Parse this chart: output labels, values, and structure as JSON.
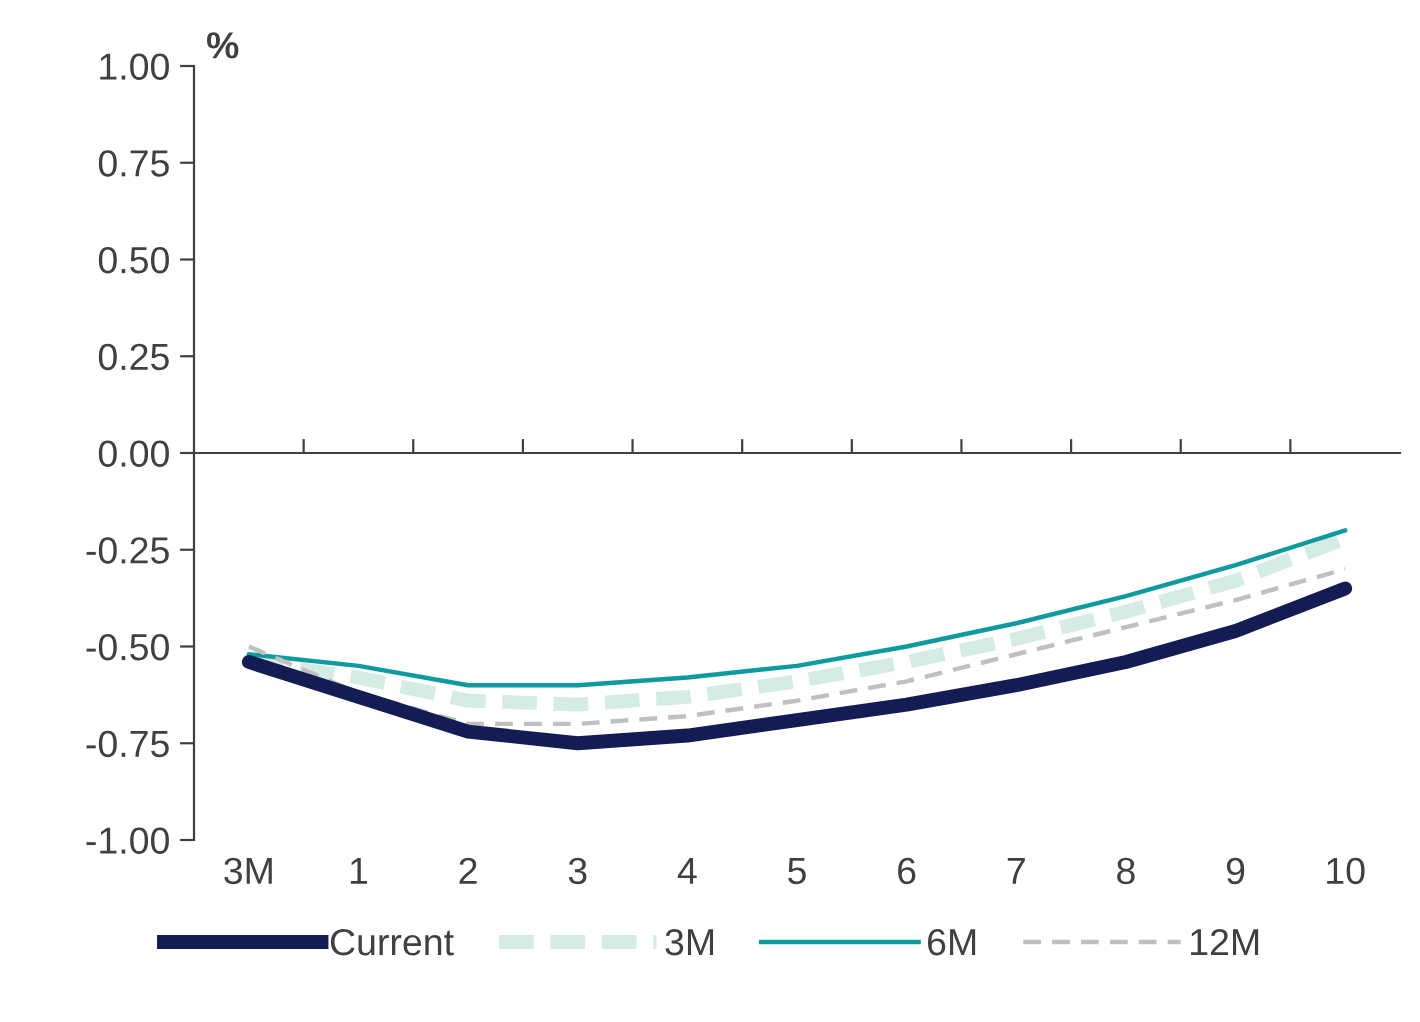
{
  "chart_data": {
    "type": "line",
    "ylabel": "%",
    "categories": [
      "3M",
      "1",
      "2",
      "3",
      "4",
      "5",
      "6",
      "7",
      "8",
      "9",
      "10"
    ],
    "ylim": [
      -1,
      1
    ],
    "yticks": [
      {
        "value": -1,
        "label": "-1.00"
      },
      {
        "value": -0.75,
        "label": "-0.75"
      },
      {
        "value": -0.5,
        "label": "-0.50"
      },
      {
        "value": -0.25,
        "label": "-0.25"
      },
      {
        "value": 0,
        "label": "0.00"
      },
      {
        "value": 0.25,
        "label": "0.25"
      },
      {
        "value": 0.5,
        "label": "0.50"
      },
      {
        "value": 0.75,
        "label": "0.75"
      },
      {
        "value": 1,
        "label": "1.00"
      }
    ],
    "legend": "bottom",
    "marker": "none",
    "series": [
      {
        "name": "Current",
        "color": "#141c54",
        "line_style": "solid",
        "values": [
          -0.54,
          -0.63,
          -0.72,
          -0.75,
          -0.73,
          -0.69,
          -0.65,
          -0.6,
          -0.54,
          -0.46,
          -0.35
        ]
      },
      {
        "name": "3M",
        "color": "#d4ebe6",
        "line_style": "dashed",
        "values": [
          -0.54,
          -0.58,
          -0.64,
          -0.65,
          -0.63,
          -0.59,
          -0.54,
          -0.48,
          -0.41,
          -0.33,
          -0.22
        ]
      },
      {
        "name": "6M",
        "color": "#0f9a9e",
        "line_style": "solid",
        "values": [
          -0.52,
          -0.55,
          -0.6,
          -0.6,
          -0.58,
          -0.55,
          -0.5,
          -0.44,
          -0.37,
          -0.29,
          -0.2
        ]
      },
      {
        "name": "12M",
        "color": "#c0c0c0",
        "line_style": "dashed",
        "values": [
          -0.5,
          -0.62,
          -0.7,
          -0.7,
          -0.68,
          -0.64,
          -0.59,
          -0.52,
          -0.45,
          -0.38,
          -0.3
        ]
      }
    ]
  }
}
